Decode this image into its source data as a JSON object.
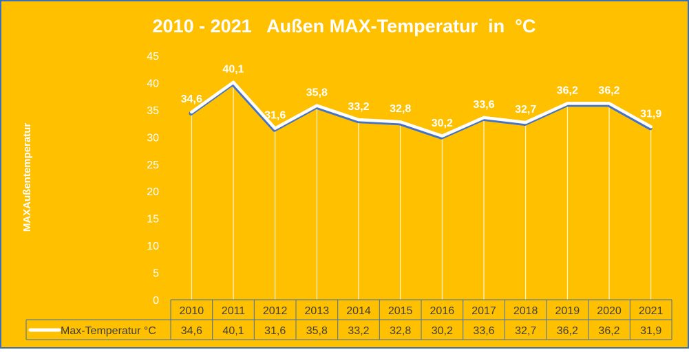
{
  "colors": {
    "background": "#FFC000",
    "border": "#3E6FB0",
    "line": "#4472C4",
    "line_glow": "#FFFFFF",
    "text": "#FFFFFF",
    "axis_text": "#FFFFFF",
    "table_text": "#404040",
    "gridline": "#FFFFFF"
  },
  "chart_data": {
    "type": "line",
    "title": "2010 - 2021   Außen MAX-Temperatur  in  °C",
    "xlabel": "",
    "ylabel": "MAXAußentemperatur",
    "ylim": [
      0,
      45
    ],
    "yticks": [
      "0",
      "5",
      "10",
      "15",
      "20",
      "25",
      "30",
      "35",
      "40",
      "45"
    ],
    "grid": "vertical-drop-lines",
    "legend": "data-table",
    "categories": [
      "2010",
      "2011",
      "2012",
      "2013",
      "2014",
      "2015",
      "2016",
      "2017",
      "2018",
      "2019",
      "2020",
      "2021"
    ],
    "series": [
      {
        "name": "Max-Temperatur  °C",
        "values": [
          34.6,
          40.1,
          31.6,
          35.8,
          33.2,
          32.8,
          30.2,
          33.6,
          32.7,
          36.2,
          36.2,
          31.9
        ],
        "labels": [
          "34,6",
          "40,1",
          "31,6",
          "35,8",
          "33,2",
          "32,8",
          "30,2",
          "33,6",
          "32,7",
          "36,2",
          "36,2",
          "31,9"
        ]
      }
    ]
  }
}
